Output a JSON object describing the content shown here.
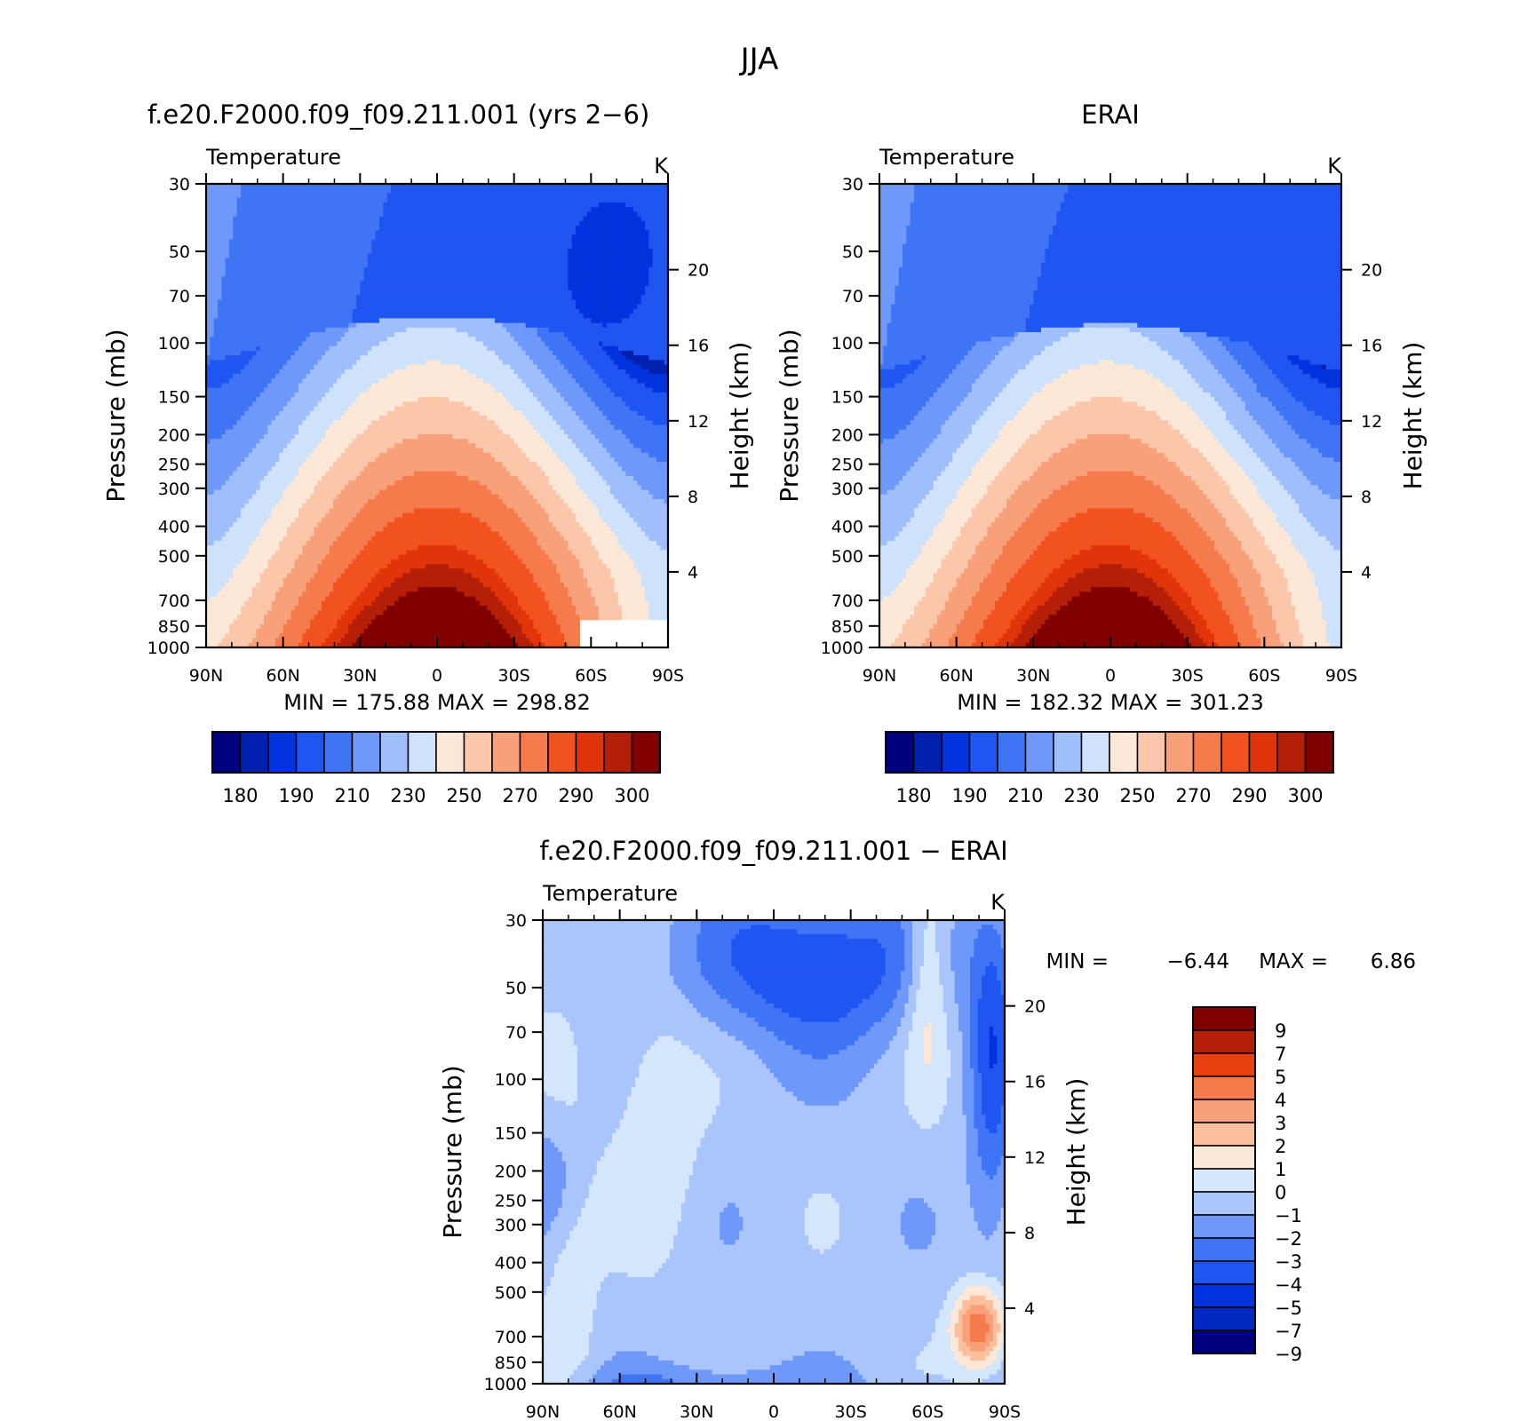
{
  "figure": {
    "title": "JJA"
  },
  "colors": {
    "abs_palette": [
      "#00007f",
      "#0020b0",
      "#0033dd",
      "#1f55f0",
      "#3f75f5",
      "#6e98fa",
      "#9fbefc",
      "#cfe2fb",
      "#fde7d7",
      "#fbc6a9",
      "#f8a07a",
      "#f57a4c",
      "#f1521f",
      "#e0340a",
      "#b41f08",
      "#800000"
    ],
    "diff_palette": [
      "#00007f",
      "#0029c4",
      "#0033dd",
      "#1f55f0",
      "#3f75f5",
      "#6e98fa",
      "#a9c5fb",
      "#d4e6fb",
      "#fde7d7",
      "#fbbf9c",
      "#f8a07a",
      "#f57a4c",
      "#e8400e",
      "#b41f08",
      "#800000"
    ]
  },
  "panels": {
    "model": {
      "title": "f.e20.F2000.f09_f09.211.001 (yrs 2−6)",
      "variable": "Temperature",
      "units": "K",
      "ylabel": "Pressure (mb)",
      "y2label": "Height (km)",
      "minmax": "MIN = 175.88   MAX = 298.82"
    },
    "obs": {
      "title": "ERAI",
      "variable": "Temperature",
      "units": "K",
      "ylabel": "Pressure (mb)",
      "y2label": "Height (km)",
      "minmax": "MIN = 182.32   MAX = 301.23"
    },
    "diff": {
      "title": "f.e20.F2000.f09_f09.211.001 − ERAI",
      "variable": "Temperature",
      "units": "K",
      "ylabel": "Pressure (mb)",
      "y2label": "Height (km)",
      "min_label": "MIN =",
      "min_value": "−6.44",
      "max_label": "MAX =",
      "max_value": "6.86"
    }
  },
  "chart_data": [
    {
      "type": "heatmap",
      "panel": "model",
      "title": "f.e20.F2000.f09_f09.211.001 (yrs 2−6)",
      "xlabel": "",
      "ylabel": "Pressure (mb)",
      "y2label": "Height (km)",
      "x_ticks": [
        "90N",
        "60N",
        "30N",
        "0",
        "30S",
        "60S",
        "90S"
      ],
      "y_ticks": [
        30,
        50,
        70,
        100,
        150,
        200,
        250,
        300,
        400,
        500,
        700,
        850,
        1000
      ],
      "y2_ticks": [
        20,
        16,
        12,
        8,
        4
      ],
      "y_scale": "log",
      "xlim": [
        90,
        -90
      ],
      "ylim": [
        1000,
        30
      ],
      "contour_levels": [
        180,
        185,
        190,
        200,
        210,
        220,
        230,
        240,
        250,
        260,
        270,
        280,
        290,
        295,
        300
      ],
      "colorbar_labels": [
        "180",
        "190",
        "210",
        "230",
        "250",
        "270",
        "290",
        "300"
      ],
      "min": 175.88,
      "max": 298.82
    },
    {
      "type": "heatmap",
      "panel": "obs",
      "title": "ERAI",
      "xlabel": "",
      "ylabel": "Pressure (mb)",
      "y2label": "Height (km)",
      "x_ticks": [
        "90N",
        "60N",
        "30N",
        "0",
        "30S",
        "60S",
        "90S"
      ],
      "y_ticks": [
        30,
        50,
        70,
        100,
        150,
        200,
        250,
        300,
        400,
        500,
        700,
        850,
        1000
      ],
      "y2_ticks": [
        20,
        16,
        12,
        8,
        4
      ],
      "y_scale": "log",
      "xlim": [
        90,
        -90
      ],
      "ylim": [
        1000,
        30
      ],
      "contour_levels": [
        180,
        185,
        190,
        200,
        210,
        220,
        230,
        240,
        250,
        260,
        270,
        280,
        290,
        295,
        300
      ],
      "colorbar_labels": [
        "180",
        "190",
        "210",
        "230",
        "250",
        "270",
        "290",
        "300"
      ],
      "min": 182.32,
      "max": 301.23
    },
    {
      "type": "heatmap",
      "panel": "diff",
      "title": "f.e20.F2000.f09_f09.211.001 − ERAI",
      "xlabel": "",
      "ylabel": "Pressure (mb)",
      "y2label": "Height (km)",
      "x_ticks": [
        "90N",
        "60N",
        "30N",
        "0",
        "30S",
        "60S",
        "90S"
      ],
      "y_ticks": [
        30,
        50,
        70,
        100,
        150,
        200,
        250,
        300,
        400,
        500,
        700,
        850,
        1000
      ],
      "y2_ticks": [
        20,
        16,
        12,
        8,
        4
      ],
      "y_scale": "log",
      "xlim": [
        90,
        -90
      ],
      "ylim": [
        1000,
        30
      ],
      "contour_levels": [
        -9,
        -7,
        -5,
        -4,
        -3,
        -2,
        -1,
        0,
        1,
        2,
        3,
        4,
        5,
        7,
        9
      ],
      "colorbar_labels": [
        "9",
        "7",
        "5",
        "4",
        "3",
        "2",
        "1",
        "0",
        "−1",
        "−2",
        "−3",
        "−4",
        "−5",
        "−7",
        "−9"
      ],
      "min": -6.44,
      "max": 6.86
    }
  ]
}
